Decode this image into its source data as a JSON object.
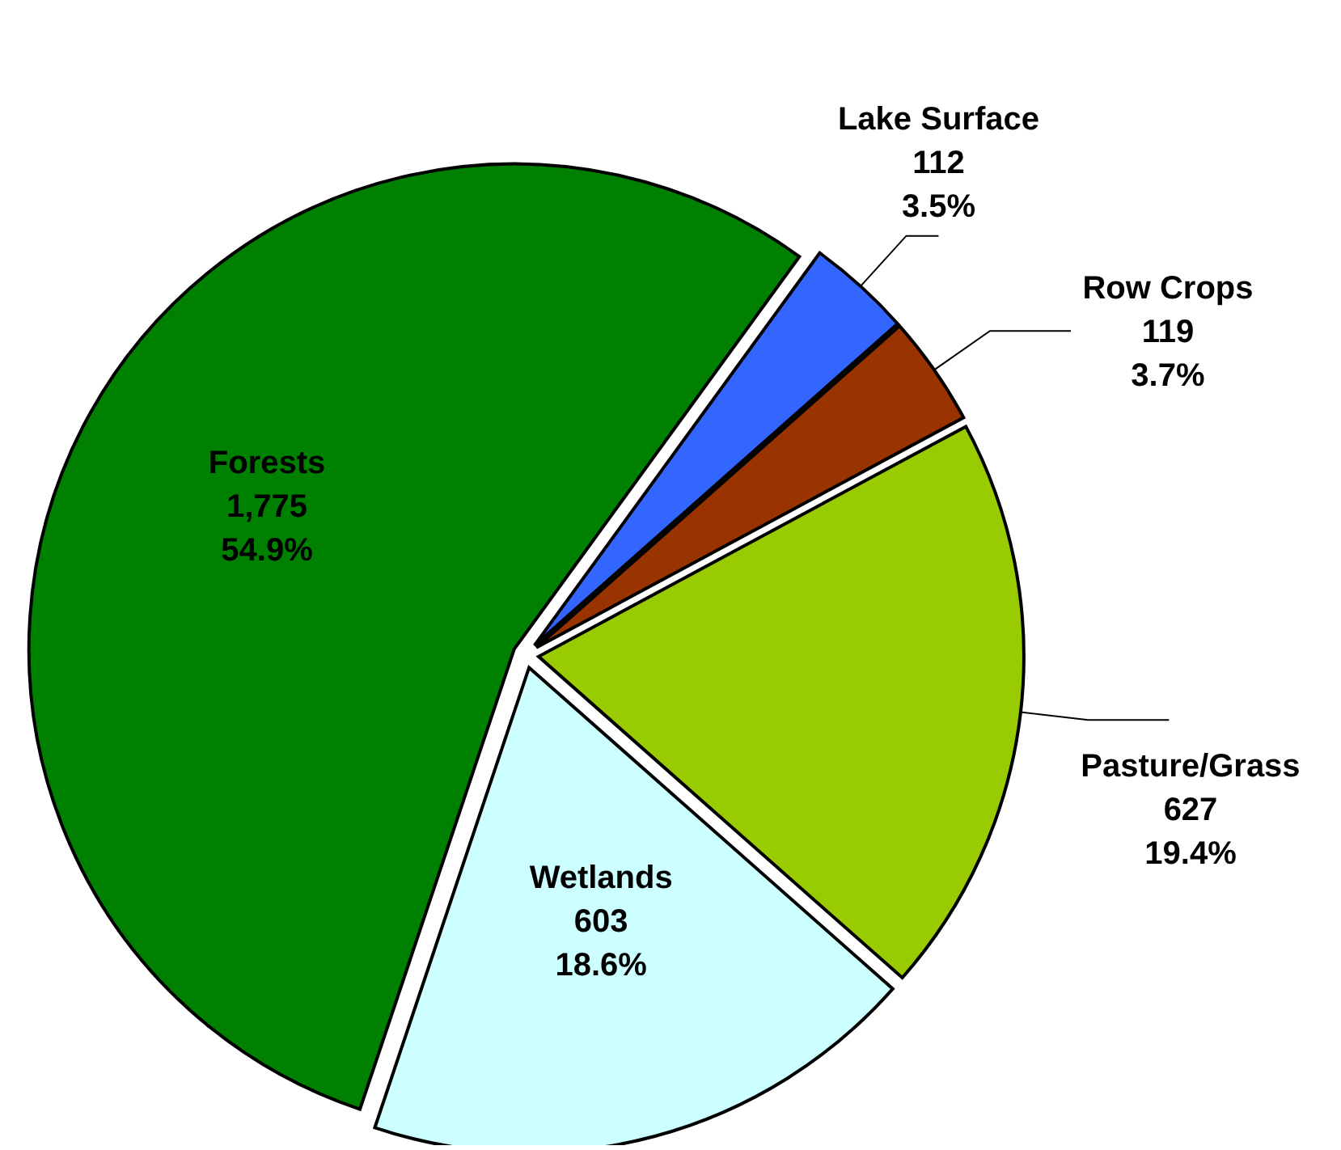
{
  "chart_data": {
    "type": "pie",
    "categories": [
      "Lake Surface",
      "Row Crops",
      "Pasture/Grass",
      "Wetlands",
      "Forests"
    ],
    "values": [
      112,
      119,
      627,
      603,
      1775
    ],
    "colors": [
      "#3366ff",
      "#993300",
      "#99cc00",
      "#ccffff",
      "#008000"
    ],
    "value_labels": [
      "112\n3.5%",
      "119\n3.7%",
      "627\n19.4%",
      "603\n18.6%",
      "1,775\n54.9%"
    ]
  }
}
